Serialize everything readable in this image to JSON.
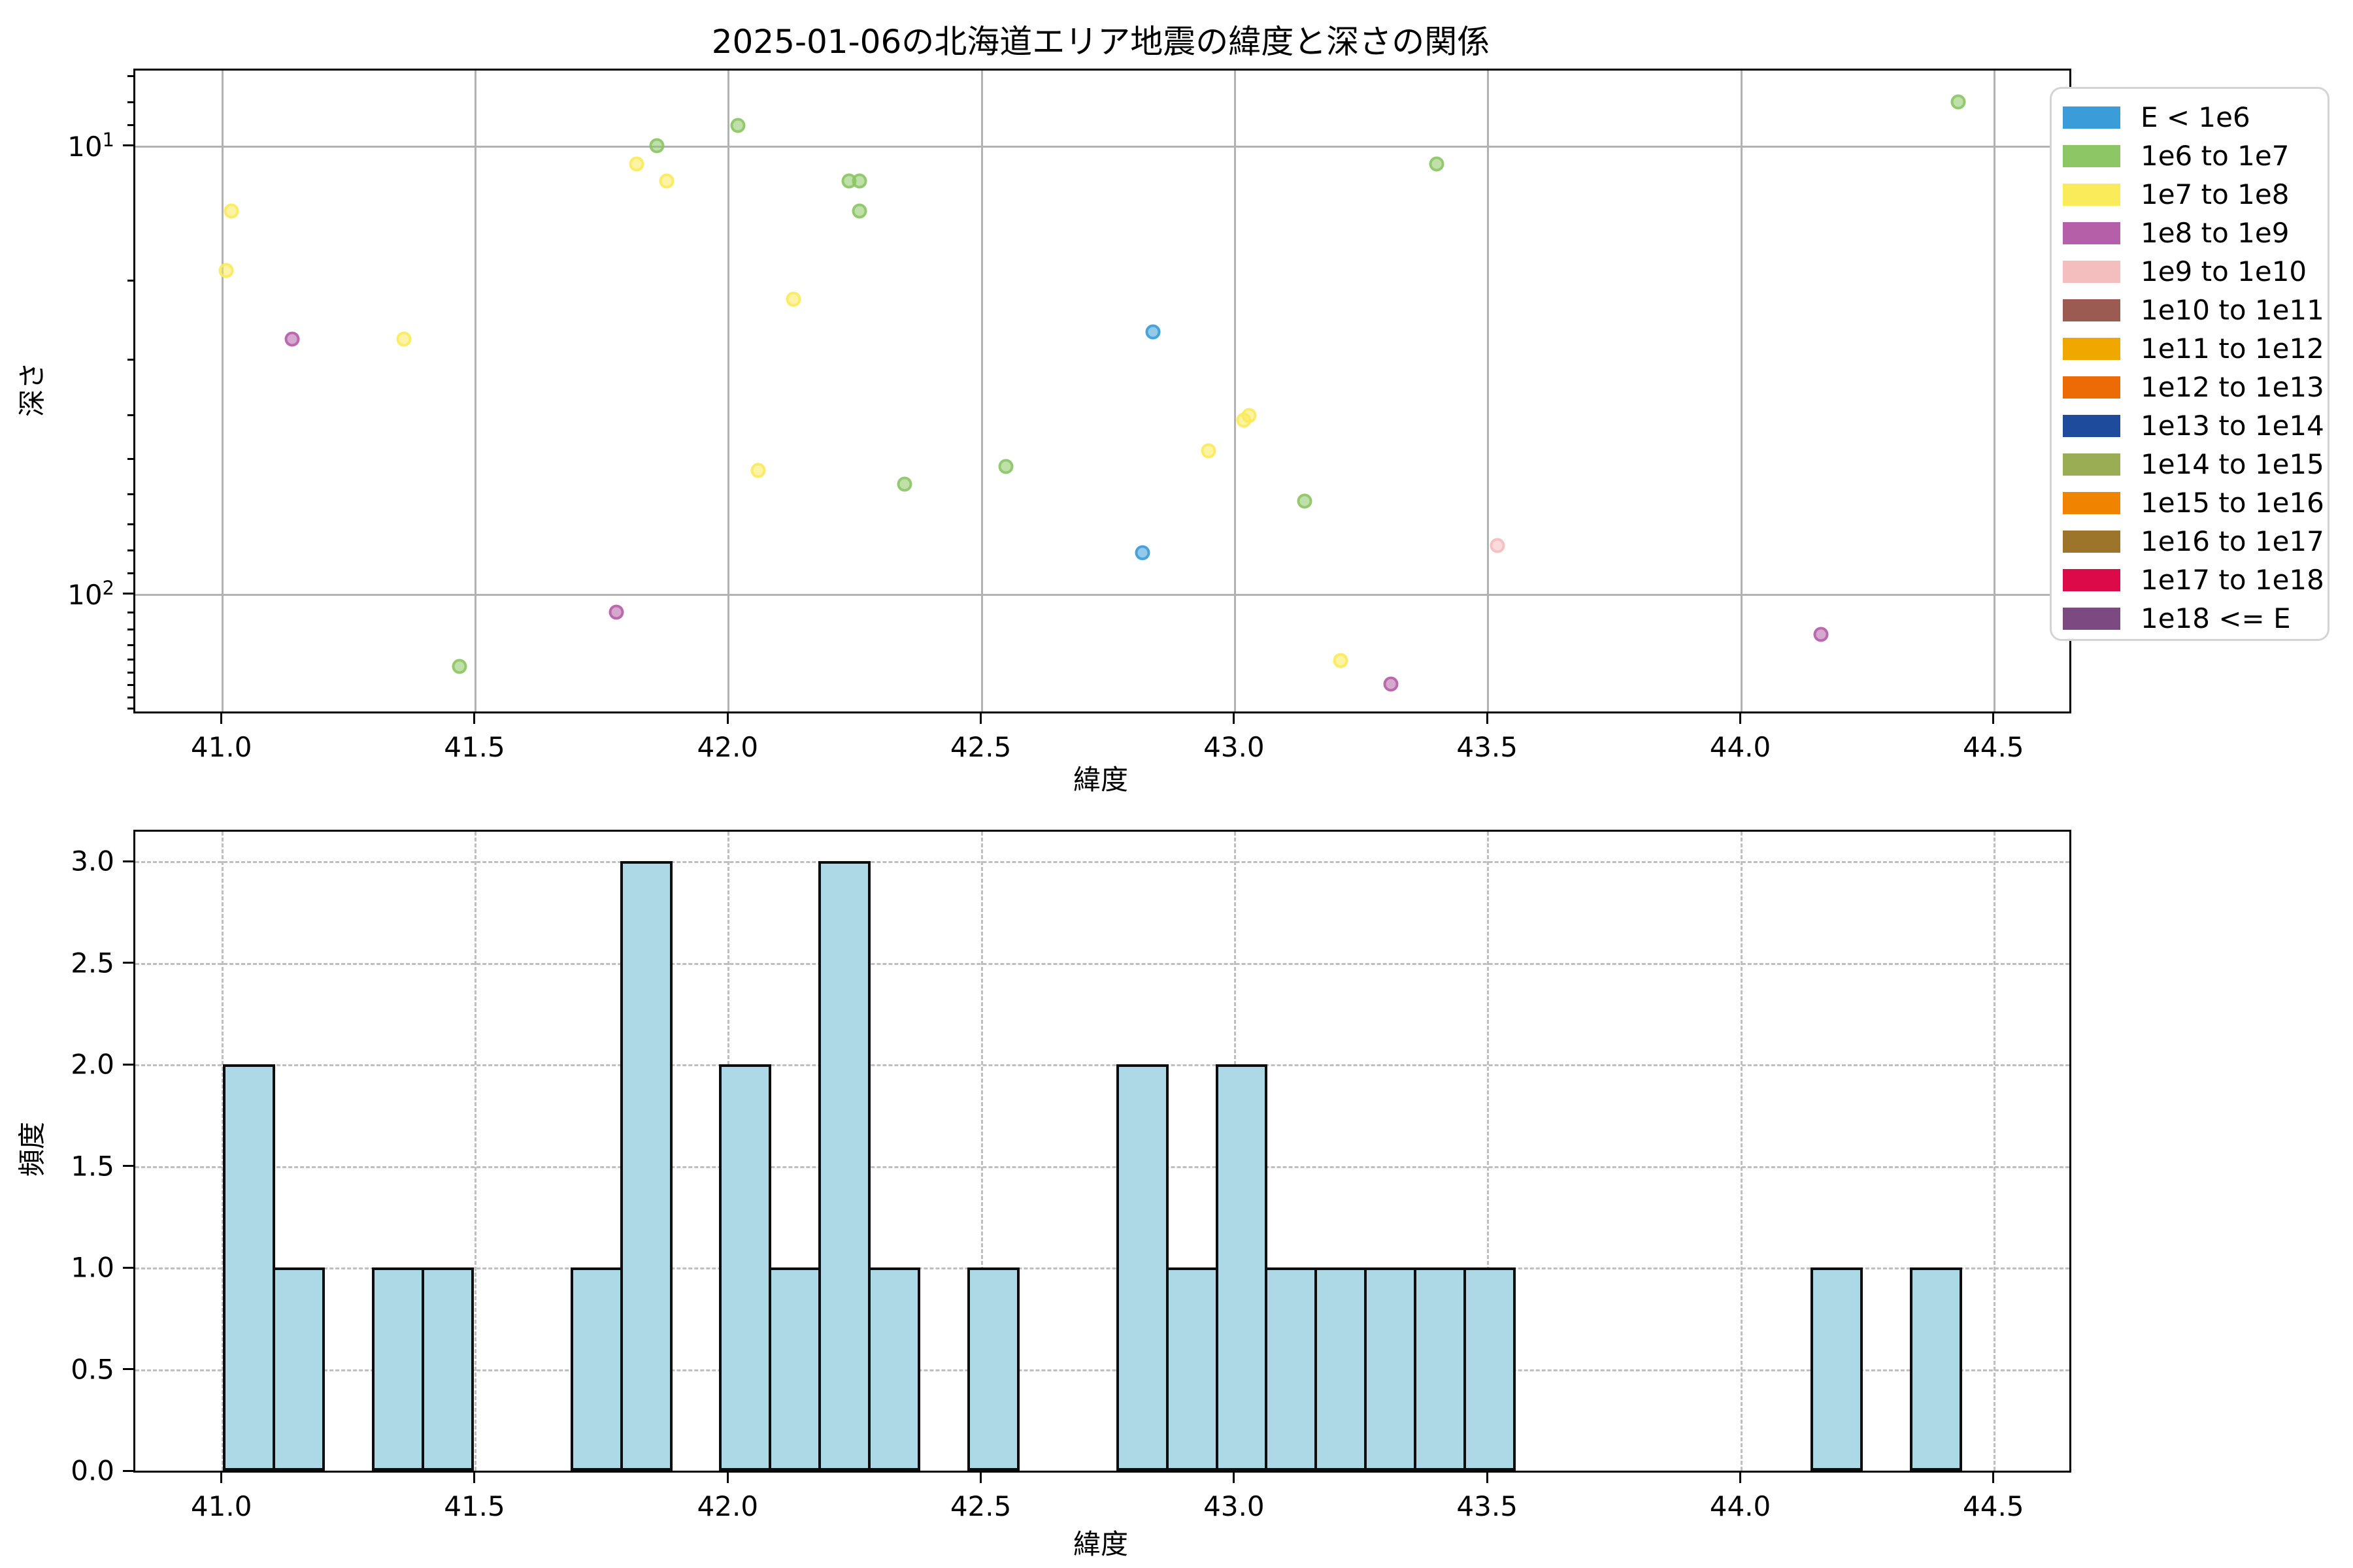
{
  "title": "2025-01-06の北海道エリア地震の緯度と深さの関係",
  "figure": {
    "background": "#ffffff",
    "grid_color_solid": "#b2b2b2",
    "grid_color_dashed": "#bfbfbf"
  },
  "legend": {
    "entries": [
      {
        "label": "E < 1e6",
        "color": "#3A9CD9"
      },
      {
        "label": "1e6 to 1e7",
        "color": "#8CC665"
      },
      {
        "label": "1e7 to 1e8",
        "color": "#FAEB5A"
      },
      {
        "label": "1e8 to 1e9",
        "color": "#B55FA8"
      },
      {
        "label": "1e9 to 1e10",
        "color": "#F5BEBE"
      },
      {
        "label": "1e10 to 1e11",
        "color": "#9C5B52"
      },
      {
        "label": "1e11 to 1e12",
        "color": "#F0A800"
      },
      {
        "label": "1e12 to 1e13",
        "color": "#EC6B06"
      },
      {
        "label": "1e13 to 1e14",
        "color": "#1E4B9B"
      },
      {
        "label": "1e14 to 1e15",
        "color": "#9AAD54"
      },
      {
        "label": "1e15 to 1e16",
        "color": "#F08300"
      },
      {
        "label": "1e16 to 1e17",
        "color": "#9C742A"
      },
      {
        "label": "1e17 to 1e18",
        "color": "#DC0A48"
      },
      {
        "label": "1e18 <= E",
        "color": "#7C4A80"
      }
    ]
  },
  "chart_data": [
    {
      "type": "scatter",
      "title": "2025-01-06の北海道エリア地震の緯度と深さの関係",
      "xlabel": "緯度",
      "ylabel": "深さ",
      "xlim": [
        40.83,
        44.65
      ],
      "x_ticks": [
        41.0,
        41.5,
        42.0,
        42.5,
        43.0,
        43.5,
        44.0,
        44.5
      ],
      "yscale": "log",
      "y_inverted": true,
      "ylim": [
        6.8,
        183
      ],
      "y_major_ticks": [
        {
          "value": 10,
          "base": "10",
          "exp": "1"
        },
        {
          "value": 100,
          "base": "10",
          "exp": "2"
        }
      ],
      "y_minor_ticks": [
        7,
        8,
        9,
        20,
        30,
        40,
        50,
        60,
        70,
        80,
        90,
        110,
        120,
        130,
        140,
        150,
        160,
        170,
        180
      ],
      "grid": "solid",
      "legend_position": "upper-right-outside",
      "point_opacity": 0.55,
      "points_format": [
        "latitude",
        "depth_km",
        "legend_group_index"
      ],
      "points": [
        [
          41.02,
          14,
          2
        ],
        [
          41.01,
          19,
          2
        ],
        [
          41.14,
          27,
          3
        ],
        [
          41.36,
          27,
          2
        ],
        [
          41.47,
          145,
          1
        ],
        [
          41.78,
          110,
          3
        ],
        [
          41.82,
          11,
          2
        ],
        [
          41.86,
          10,
          1
        ],
        [
          41.88,
          12,
          2
        ],
        [
          42.02,
          9,
          1
        ],
        [
          42.06,
          53,
          2
        ],
        [
          42.13,
          22,
          2
        ],
        [
          42.24,
          12,
          1
        ],
        [
          42.26,
          14,
          1
        ],
        [
          42.26,
          12,
          1
        ],
        [
          42.35,
          57,
          1
        ],
        [
          42.55,
          52,
          1
        ],
        [
          42.82,
          81,
          0
        ],
        [
          42.84,
          26,
          0
        ],
        [
          42.95,
          48,
          2
        ],
        [
          43.02,
          41,
          2
        ],
        [
          43.03,
          40,
          2
        ],
        [
          43.14,
          62,
          1
        ],
        [
          43.21,
          141,
          2
        ],
        [
          43.31,
          159,
          3
        ],
        [
          43.4,
          11,
          1
        ],
        [
          43.52,
          78,
          4
        ],
        [
          44.16,
          123,
          3
        ],
        [
          44.43,
          8,
          1
        ]
      ]
    },
    {
      "type": "histogram",
      "xlabel": "緯度",
      "ylabel": "頻度",
      "xlim": [
        40.83,
        44.65
      ],
      "x_ticks": [
        41.0,
        41.5,
        42.0,
        42.5,
        43.0,
        43.5,
        44.0,
        44.5
      ],
      "ylim": [
        0,
        3.145
      ],
      "y_ticks": [
        0.0,
        0.5,
        1.0,
        1.5,
        2.0,
        2.5,
        3.0
      ],
      "grid": "dashed",
      "bar_color": "#ADD8E6",
      "bar_edge_color": "#0d0d0d",
      "bin_start": 41.006,
      "bin_width": 0.098,
      "counts": [
        2,
        1,
        0,
        1,
        1,
        0,
        0,
        1,
        3,
        0,
        2,
        1,
        3,
        1,
        0,
        1,
        0,
        0,
        2,
        1,
        2,
        1,
        1,
        1,
        1,
        1,
        0,
        0,
        0,
        0,
        0,
        0,
        1,
        0,
        1
      ]
    }
  ]
}
